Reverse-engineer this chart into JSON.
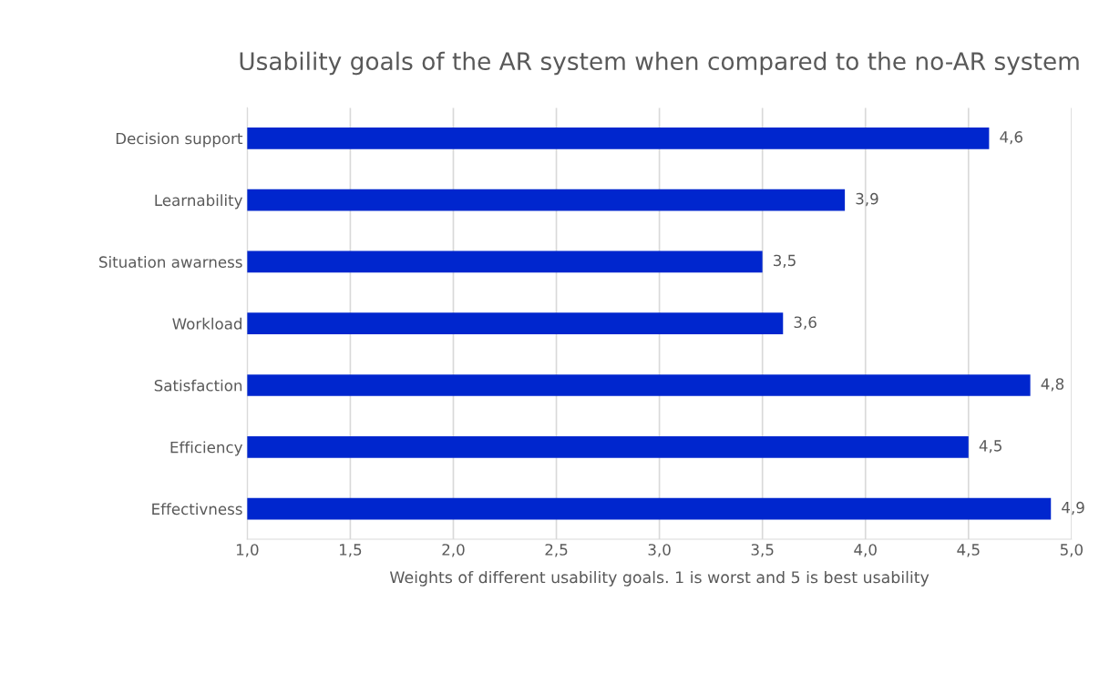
{
  "chart_data": {
    "type": "bar",
    "orientation": "horizontal",
    "title": "Usability goals of the AR system when compared to the no-AR system",
    "xlabel": "Weights of different usability goals. 1 is worst and 5 is best usability",
    "categories": [
      "Decision support",
      "Learnability",
      "Situation awarness",
      "Workload",
      "Satisfaction",
      "Efficiency",
      "Effectivness"
    ],
    "values": [
      4.6,
      3.9,
      3.5,
      3.6,
      4.8,
      4.5,
      4.9
    ],
    "value_labels": [
      "4,6",
      "3,9",
      "3,5",
      "3,6",
      "4,8",
      "4,5",
      "4,9"
    ],
    "color": "#0026ce",
    "xlim": [
      1,
      5
    ],
    "xticks": [
      {
        "value": 1,
        "label": "1,0"
      },
      {
        "value": 1.5,
        "label": "1,5"
      },
      {
        "value": 2,
        "label": "2,0"
      },
      {
        "value": 2.5,
        "label": "2,5"
      },
      {
        "value": 3,
        "label": "3,0"
      },
      {
        "value": 3.5,
        "label": "3,5"
      },
      {
        "value": 4,
        "label": "4,0"
      },
      {
        "value": 4.5,
        "label": "4,5"
      },
      {
        "value": 5,
        "label": "5,0"
      }
    ],
    "grid": "x",
    "legend": false
  }
}
